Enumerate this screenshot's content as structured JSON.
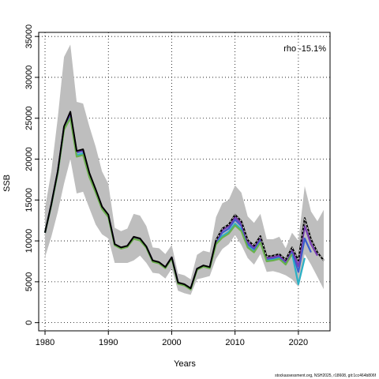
{
  "chart_data": {
    "type": "line",
    "xlabel": "Years",
    "ylabel": "SSB",
    "annotation": "rho -15.1%",
    "footer": "stockassessment.org, NSH2025, r18608, git:1cc464b806f",
    "xlim": [
      1979,
      2025
    ],
    "ylim": [
      -1000,
      35500
    ],
    "xticks": [
      1980,
      1990,
      2000,
      2010,
      2020
    ],
    "yticks": [
      0,
      5000,
      10000,
      15000,
      20000,
      25000,
      30000,
      35000
    ],
    "grid": true,
    "colors": {
      "band": "#bebebe",
      "main": "#000000",
      "peel_cyan": "#2ab0c5",
      "peel_blue": "#3a5fcd",
      "peel_purple": "#7b3fb5",
      "peel_green": "#6ab04c"
    },
    "band": {
      "x": [
        1980,
        1981,
        1982,
        1983,
        1984,
        1985,
        1986,
        1987,
        1988,
        1989,
        1990,
        1991,
        1992,
        1993,
        1994,
        1995,
        1996,
        1997,
        1998,
        1999,
        2000,
        2001,
        2002,
        2003,
        2004,
        2005,
        2006,
        2007,
        2008,
        2009,
        2010,
        2011,
        2012,
        2013,
        2014,
        2015,
        2016,
        2017,
        2018,
        2019,
        2020,
        2021,
        2022,
        2023,
        2024
      ],
      "upper": [
        14000,
        18500,
        25000,
        32500,
        34000,
        27000,
        26800,
        24000,
        21500,
        18500,
        17000,
        11600,
        11200,
        11500,
        13300,
        13100,
        11800,
        9200,
        9100,
        8400,
        9500,
        6000,
        5800,
        5300,
        8300,
        8800,
        8600,
        12900,
        14600,
        15000,
        16800,
        15900,
        13000,
        12200,
        13300,
        10200,
        10200,
        10500,
        9100,
        11000,
        10000,
        16700,
        13600,
        12400,
        13800
      ],
      "lower": [
        8000,
        10500,
        13500,
        17000,
        20000,
        15800,
        16000,
        14000,
        12000,
        10800,
        10300,
        7300,
        7300,
        7300,
        7600,
        8200,
        7300,
        6100,
        6000,
        5400,
        6600,
        3900,
        3600,
        3400,
        5300,
        5500,
        5700,
        7800,
        9000,
        9600,
        10700,
        9500,
        7900,
        7100,
        8400,
        6200,
        6300,
        6100,
        5800,
        5300,
        4400,
        8400,
        7100,
        5600,
        4100
      ]
    },
    "series": [
      {
        "name": "",
        "color": "#000000",
        "x": [
          1980,
          1981,
          1982,
          1983,
          1984,
          1985,
          1986,
          1987,
          1988,
          1989,
          1990,
          1991,
          1992,
          1993,
          1994,
          1995,
          1996,
          1997,
          1998,
          1999,
          2000,
          2001,
          2002,
          2003,
          2004,
          2005,
          2006,
          2007,
          2008,
          2009,
          2010,
          2011,
          2012,
          2013,
          2014,
          2015,
          2016,
          2017,
          2018,
          2019,
          2020,
          2021,
          2022,
          2023,
          2024
        ],
        "values": [
          11000,
          14500,
          18500,
          24000,
          25800,
          21000,
          21200,
          18300,
          16300,
          14200,
          13200,
          9600,
          9200,
          9400,
          10500,
          10300,
          9300,
          7600,
          7400,
          6800,
          8000,
          4900,
          4700,
          4200,
          6600,
          7000,
          6800,
          10100,
          11500,
          12000,
          13200,
          12400,
          10100,
          9400,
          10600,
          8100,
          8200,
          8400,
          7700,
          9200,
          7600,
          12800,
          10200,
          8600,
          7600
        ]
      },
      {
        "name": "",
        "color": "#2ab0c5",
        "x": [
          1980,
          1981,
          1982,
          1983,
          1984,
          1985,
          1986,
          1987,
          1988,
          1989,
          1990,
          1991,
          1992,
          1993,
          1994,
          1995,
          1996,
          1997,
          1998,
          1999,
          2000,
          2001,
          2002,
          2003,
          2004,
          2005,
          2006,
          2007,
          2008,
          2009,
          2010,
          2011,
          2012,
          2013,
          2014,
          2015,
          2016,
          2017,
          2018,
          2019,
          2020,
          2021
        ],
        "values": [
          11000,
          14400,
          18300,
          23700,
          25200,
          20500,
          20700,
          17900,
          16000,
          14000,
          13000,
          9500,
          9100,
          9300,
          10300,
          10100,
          9200,
          7500,
          7300,
          6700,
          7900,
          4800,
          4600,
          4100,
          6500,
          6900,
          6700,
          9700,
          10600,
          11100,
          12100,
          11400,
          9300,
          8700,
          9900,
          7600,
          7700,
          7900,
          7200,
          8500,
          4700,
          7900
        ]
      },
      {
        "name": "",
        "color": "#3a5fcd",
        "x": [
          1980,
          1981,
          1982,
          1983,
          1984,
          1985,
          1986,
          1987,
          1988,
          1989,
          1990,
          1991,
          1992,
          1993,
          1994,
          1995,
          1996,
          1997,
          1998,
          1999,
          2000,
          2001,
          2002,
          2003,
          2004,
          2005,
          2006,
          2007,
          2008,
          2009,
          2010,
          2011,
          2012,
          2013,
          2014,
          2015,
          2016,
          2017,
          2018,
          2019,
          2020,
          2021,
          2022
        ],
        "values": [
          11000,
          14450,
          18400,
          23850,
          25500,
          20800,
          21000,
          18100,
          16150,
          14100,
          13100,
          9550,
          9150,
          9350,
          10400,
          10200,
          9250,
          7550,
          7350,
          6750,
          7950,
          4850,
          4650,
          4150,
          6550,
          6950,
          6750,
          9900,
          11000,
          11500,
          12600,
          11800,
          9600,
          9000,
          10200,
          7800,
          7900,
          8100,
          7400,
          8800,
          6200,
          10300,
          8600
        ]
      },
      {
        "name": "",
        "color": "#7b3fb5",
        "x": [
          1980,
          1981,
          1982,
          1983,
          1984,
          1985,
          1986,
          1987,
          1988,
          1989,
          1990,
          1991,
          1992,
          1993,
          1994,
          1995,
          1996,
          1997,
          1998,
          1999,
          2000,
          2001,
          2002,
          2003,
          2004,
          2005,
          2006,
          2007,
          2008,
          2009,
          2010,
          2011,
          2012,
          2013,
          2014,
          2015,
          2016,
          2017,
          2018,
          2019,
          2020,
          2021,
          2022,
          2023
        ],
        "values": [
          11000,
          14480,
          18450,
          23950,
          25650,
          20900,
          21100,
          18200,
          16250,
          14150,
          13150,
          9580,
          9180,
          9380,
          10450,
          10250,
          9280,
          7580,
          7380,
          6780,
          7980,
          4880,
          4680,
          4180,
          6580,
          6980,
          6780,
          10000,
          11300,
          11800,
          12900,
          12100,
          9900,
          9200,
          10400,
          7900,
          8000,
          8200,
          7500,
          9000,
          6900,
          11800,
          9600,
          8200
        ]
      },
      {
        "name": "",
        "color": "#6ab04c",
        "x": [
          1980,
          1981,
          1982,
          1983,
          1984,
          1985,
          1986,
          1987,
          1988,
          1989,
          1990,
          1991,
          1992,
          1993,
          1994,
          1995,
          1996,
          1997,
          1998,
          1999,
          2000,
          2001,
          2002,
          2003,
          2004,
          2005,
          2006,
          2007,
          2008,
          2009,
          2010,
          2011,
          2012,
          2013,
          2014,
          2015,
          2016,
          2017,
          2018,
          2019
        ],
        "values": [
          11000,
          14400,
          18300,
          23600,
          25000,
          20300,
          20500,
          17800,
          15900,
          13900,
          12900,
          9450,
          9050,
          9250,
          10250,
          10050,
          9150,
          7450,
          7250,
          6650,
          7850,
          4750,
          4550,
          4050,
          6450,
          6850,
          6650,
          9600,
          10400,
          10900,
          11900,
          11200,
          9200,
          8600,
          9800,
          7500,
          7600,
          7800,
          7100,
          8400
        ]
      }
    ]
  }
}
